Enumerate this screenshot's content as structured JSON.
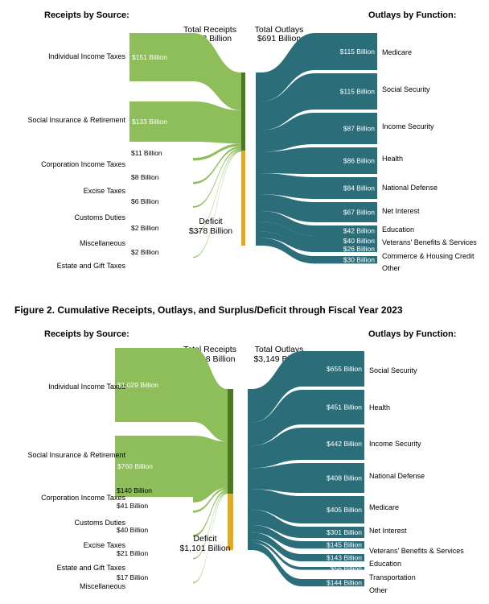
{
  "colors": {
    "receipts": "#8dbe5a",
    "outlays": "#2b6e7a",
    "deficit": "#e5a91f",
    "bar": "#4b7a1e"
  },
  "figure_title": "Figure 2. Cumulative Receipts, Outlays, and Surplus/Deficit through Fiscal Year 2023",
  "charts": [
    {
      "receipts_header": "Receipts by Source:",
      "outlays_header": "Outlays by Function:",
      "total_receipts_label": "Total Receipts",
      "total_receipts_value": "$313 Billion",
      "total_outlays_label": "Total Outlays",
      "total_outlays_value": "$691 Billion",
      "deficit_label": "Deficit",
      "deficit_value": "$378 Billion",
      "receipts": [
        {
          "name": "Individual Income Taxes",
          "amount": "$151 Billion",
          "value": 151
        },
        {
          "name": "Social Insurance & Retirement",
          "amount": "$133 Billion",
          "value": 133
        },
        {
          "name": "Corporation Income Taxes",
          "amount": "$11 Billion",
          "value": 11
        },
        {
          "name": "Excise Taxes",
          "amount": "$8 Billion",
          "value": 8
        },
        {
          "name": "Customs Duties",
          "amount": "$6 Billion",
          "value": 6
        },
        {
          "name": "Miscellaneous",
          "amount": "$2 Billion",
          "value": 2
        },
        {
          "name": "Estate and Gift Taxes",
          "amount": "$2 Billion",
          "value": 2
        }
      ],
      "outlays": [
        {
          "name": "Medicare",
          "amount": "$115 Billion",
          "value": 115
        },
        {
          "name": "Social Security",
          "amount": "$115 Billion",
          "value": 115
        },
        {
          "name": "Income Security",
          "amount": "$87 Billion",
          "value": 87
        },
        {
          "name": "Health",
          "amount": "$86 Billion",
          "value": 86
        },
        {
          "name": "National Defense",
          "amount": "$84 Billion",
          "value": 84
        },
        {
          "name": "Net Interest",
          "amount": "$67 Billion",
          "value": 67
        },
        {
          "name": "Education",
          "amount": "$42 Billion",
          "value": 42
        },
        {
          "name": "Veterans' Benefits & Services",
          "amount": "$40 Billion",
          "value": 40
        },
        {
          "name": "Commerce & Housing Credit",
          "amount": "$26 Billion",
          "value": 26
        },
        {
          "name": "Other",
          "amount": "$30 Billion",
          "value": 30
        }
      ]
    },
    {
      "receipts_header": "Receipts by Source:",
      "outlays_header": "Outlays by Function:",
      "total_receipts_label": "Total Receipts",
      "total_receipts_value": "$2,048 Billion",
      "total_outlays_label": "Total Outlays",
      "total_outlays_value": "$3,149 Billion",
      "deficit_label": "Deficit",
      "deficit_value": "$1,101 Billion",
      "receipts": [
        {
          "name": "Individual Income Taxes",
          "amount": "$1,029 Billion",
          "value": 1029
        },
        {
          "name": "Social Insurance & Retirement",
          "amount": "$760 Billion",
          "value": 760
        },
        {
          "name": "Corporation Income Taxes",
          "amount": "$140 Billion",
          "value": 140
        },
        {
          "name": "Customs Duties",
          "amount": "$41 Billion",
          "value": 41
        },
        {
          "name": "Excise Taxes",
          "amount": "$40 Billion",
          "value": 40
        },
        {
          "name": "Estate and Gift Taxes",
          "amount": "$21 Billion",
          "value": 21
        },
        {
          "name": "Miscellaneous",
          "amount": "$17 Billion",
          "value": 17
        }
      ],
      "outlays": [
        {
          "name": "Social Security",
          "amount": "$655 Billion",
          "value": 655
        },
        {
          "name": "Health",
          "amount": "$451 Billion",
          "value": 451
        },
        {
          "name": "Income Security",
          "amount": "$442 Billion",
          "value": 442
        },
        {
          "name": "National Defense",
          "amount": "$408 Billion",
          "value": 408
        },
        {
          "name": "Medicare",
          "amount": "$405 Billion",
          "value": 405
        },
        {
          "name": "Net Interest",
          "amount": "$301 Billion",
          "value": 301
        },
        {
          "name": "Veterans' Benefits & Services",
          "amount": "$145 Billion",
          "value": 145
        },
        {
          "name": "Education",
          "amount": "$143 Billion",
          "value": 143
        },
        {
          "name": "Transportation",
          "amount": "$56 Billion",
          "value": 56
        },
        {
          "name": "Other",
          "amount": "$144 Billion",
          "value": 144
        }
      ]
    }
  ]
}
